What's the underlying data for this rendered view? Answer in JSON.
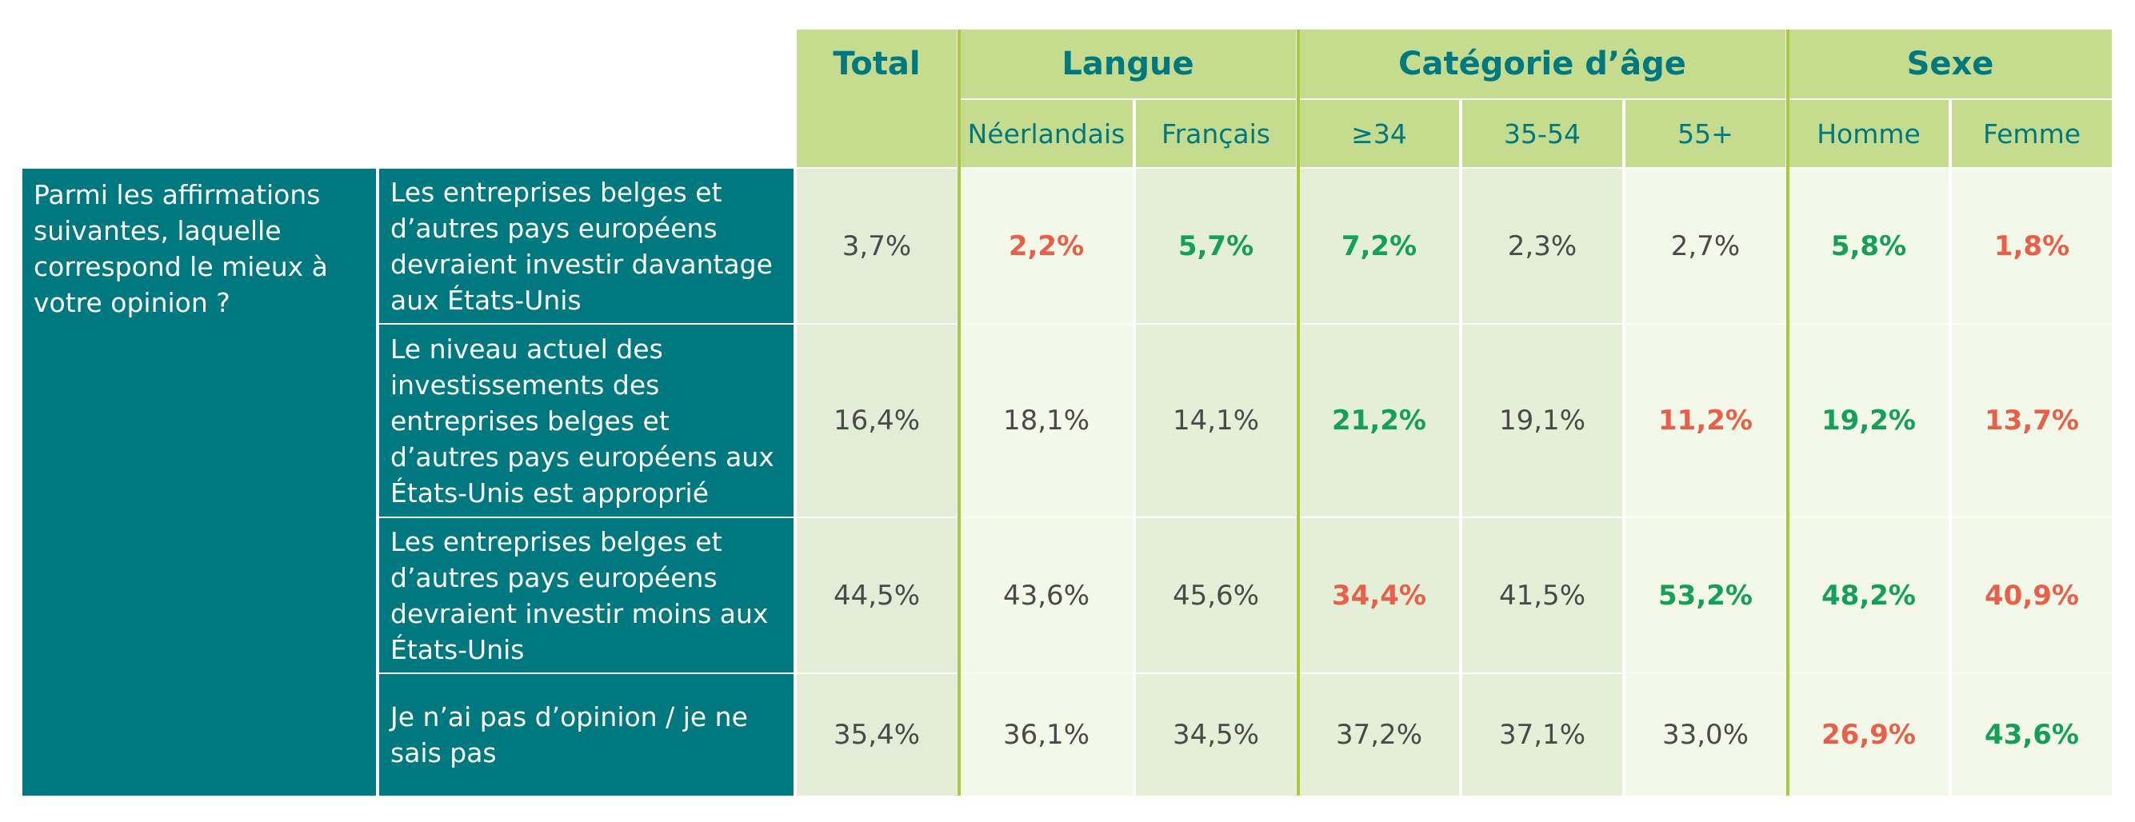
{
  "colors": {
    "teal": "#00787f",
    "header_green": "#c5dc8e",
    "positive": "#15a05a",
    "negative": "#e8604a",
    "divider": "#a6cc3c"
  },
  "question": "Parmi les affirmations suivantes, laquelle correspond le mieux à votre opinion ?",
  "headers": {
    "total": "Total",
    "groups": [
      {
        "label": "Langue",
        "columns": [
          "Néerlandais",
          "Français"
        ]
      },
      {
        "label": "Catégorie d’âge",
        "columns": [
          "≥34",
          "35-54",
          "55+"
        ]
      },
      {
        "label": "Sexe",
        "columns": [
          "Homme",
          "Femme"
        ]
      }
    ]
  },
  "rows": [
    {
      "label": "Les entreprises belges et d’autres pays européens devraient investir davantage aux États-Unis",
      "total": "3,7%",
      "cells": [
        {
          "value": "2,2%",
          "style": "neg"
        },
        {
          "value": "5,7%",
          "style": "pos"
        },
        {
          "value": "7,2%",
          "style": "pos"
        },
        {
          "value": "2,3%",
          "style": "normal"
        },
        {
          "value": "2,7%",
          "style": "normal"
        },
        {
          "value": "5,8%",
          "style": "pos"
        },
        {
          "value": "1,8%",
          "style": "neg"
        }
      ]
    },
    {
      "label": "Le niveau actuel des investissements des entreprises belges et d’autres pays européens aux États-Unis est approprié",
      "total": "16,4%",
      "cells": [
        {
          "value": "18,1%",
          "style": "normal"
        },
        {
          "value": "14,1%",
          "style": "normal"
        },
        {
          "value": "21,2%",
          "style": "pos"
        },
        {
          "value": "19,1%",
          "style": "normal"
        },
        {
          "value": "11,2%",
          "style": "neg"
        },
        {
          "value": "19,2%",
          "style": "pos"
        },
        {
          "value": "13,7%",
          "style": "neg"
        }
      ]
    },
    {
      "label": "Les entreprises belges et d’autres pays européens devraient investir moins aux États-Unis",
      "total": "44,5%",
      "cells": [
        {
          "value": "43,6%",
          "style": "normal"
        },
        {
          "value": "45,6%",
          "style": "normal"
        },
        {
          "value": "34,4%",
          "style": "neg"
        },
        {
          "value": "41,5%",
          "style": "normal"
        },
        {
          "value": "53,2%",
          "style": "pos"
        },
        {
          "value": "48,2%",
          "style": "pos"
        },
        {
          "value": "40,9%",
          "style": "neg"
        }
      ]
    },
    {
      "label": "Je n’ai pas d’opinion / je ne sais pas",
      "total": "35,4%",
      "cells": [
        {
          "value": "36,1%",
          "style": "normal"
        },
        {
          "value": "34,5%",
          "style": "normal"
        },
        {
          "value": "37,2%",
          "style": "normal"
        },
        {
          "value": "37,1%",
          "style": "normal"
        },
        {
          "value": "33,0%",
          "style": "normal"
        },
        {
          "value": "26,9%",
          "style": "neg"
        },
        {
          "value": "43,6%",
          "style": "pos"
        }
      ]
    }
  ]
}
